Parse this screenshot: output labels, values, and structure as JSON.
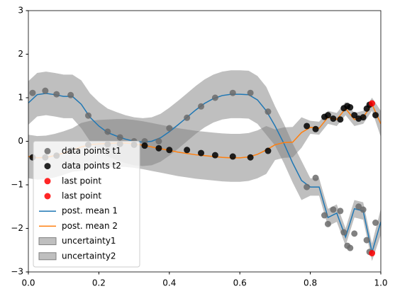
{
  "chart_data": {
    "type": "line",
    "xlim": [
      0,
      1
    ],
    "ylim": [
      -3,
      3
    ],
    "xticks": [
      {
        "value": 0,
        "label": "0.0"
      },
      0.2,
      0.4,
      0.6,
      0.8,
      {
        "value": 1,
        "label": "1.0"
      }
    ],
    "yticks": [
      {
        "value": -3,
        "label": "−3"
      },
      {
        "value": -2,
        "label": "−2"
      },
      {
        "value": -1,
        "label": "−1"
      },
      0,
      1,
      2,
      3
    ],
    "legend": "lower left",
    "x": [
      0,
      0.025,
      0.05,
      0.075,
      0.1,
      0.125,
      0.15,
      0.175,
      0.2,
      0.225,
      0.25,
      0.275,
      0.3,
      0.325,
      0.35,
      0.375,
      0.4,
      0.425,
      0.45,
      0.475,
      0.5,
      0.525,
      0.55,
      0.575,
      0.6,
      0.625,
      0.65,
      0.675,
      0.7,
      0.725,
      0.75,
      0.775,
      0.8,
      0.825,
      0.85,
      0.875,
      0.9,
      0.925,
      0.95,
      0.975,
      1
    ],
    "points": [
      {
        "name": "data points t1",
        "color": "#6b6b6b",
        "x": [
          0.012,
          0.048,
          0.08,
          0.12,
          0.17,
          0.225,
          0.26,
          0.3,
          0.33,
          0.37,
          0.4,
          0.45,
          0.49,
          0.53,
          0.58,
          0.63,
          0.68,
          0.79,
          0.815,
          0.84,
          0.85,
          0.865,
          0.885,
          0.895,
          0.905,
          0.913,
          0.925,
          0.937,
          0.95,
          0.96,
          0.968,
          0.985
        ],
        "y": [
          1.11,
          1.16,
          1.08,
          1.06,
          0.59,
          0.22,
          0.09,
          0,
          0,
          0,
          0.3,
          0.54,
          0.8,
          1,
          1.11,
          1.11,
          0.68,
          -1.05,
          -0.84,
          -1.7,
          -1.9,
          -1.57,
          -1.6,
          -2.09,
          -2.4,
          -2.45,
          -2.12,
          -1.5,
          -1.57,
          -2.27,
          -2.54,
          -1.87
        ]
      },
      {
        "name": "data points t2",
        "color": "#000000",
        "x": [
          0.012,
          0.048,
          0.08,
          0.12,
          0.17,
          0.225,
          0.26,
          0.3,
          0.33,
          0.37,
          0.4,
          0.45,
          0.49,
          0.53,
          0.58,
          0.63,
          0.68,
          0.79,
          0.815,
          0.84,
          0.85,
          0.865,
          0.885,
          0.895,
          0.905,
          0.913,
          0.925,
          0.937,
          0.95,
          0.96,
          0.968,
          0.985
        ],
        "y": [
          -0.37,
          -0.37,
          -0.33,
          -0.22,
          -0.08,
          -0.07,
          -0.06,
          -0.08,
          -0.1,
          -0.16,
          -0.2,
          -0.2,
          -0.27,
          -0.32,
          -0.35,
          -0.37,
          -0.22,
          0.35,
          0.28,
          0.56,
          0.6,
          0.52,
          0.5,
          0.76,
          0.81,
          0.78,
          0.6,
          0.52,
          0.55,
          0.75,
          0.84,
          0.6
        ]
      },
      {
        "name": "last point",
        "color": "#ff0000",
        "x": [
          0.975
        ],
        "y": [
          -2.57
        ]
      },
      {
        "name": "last point",
        "color": "#ff0000",
        "x": [
          0.975
        ],
        "y": [
          0.87
        ]
      }
    ],
    "series": [
      {
        "name": "post. mean 1",
        "color": "#1f77b4",
        "values": [
          0.88,
          1.07,
          1.1,
          1.07,
          1.03,
          1.03,
          0.85,
          0.55,
          0.35,
          0.2,
          0.12,
          0.05,
          0,
          -0.02,
          0,
          0.08,
          0.22,
          0.38,
          0.55,
          0.72,
          0.87,
          0.98,
          1.05,
          1.08,
          1.08,
          1.07,
          0.95,
          0.7,
          0.35,
          -0.05,
          -0.5,
          -0.9,
          -1.05,
          -1.05,
          -1.75,
          -1.65,
          -2.2,
          -1.55,
          -1.6,
          -2.55,
          -1.85
        ]
      },
      {
        "name": "post. mean 2",
        "color": "#ff7f0e",
        "values": [
          -0.35,
          -0.38,
          -0.37,
          -0.33,
          -0.27,
          -0.2,
          -0.13,
          -0.08,
          -0.06,
          -0.05,
          -0.04,
          -0.04,
          -0.06,
          -0.09,
          -0.13,
          -0.17,
          -0.21,
          -0.25,
          -0.28,
          -0.31,
          -0.33,
          -0.35,
          -0.37,
          -0.38,
          -0.38,
          -0.36,
          -0.3,
          -0.2,
          -0.08,
          -0.03,
          -0.02,
          0.2,
          0.32,
          0.3,
          0.55,
          0.5,
          0.75,
          0.5,
          0.55,
          0.85,
          0.4
        ]
      }
    ],
    "bands": [
      {
        "name": "uncertainty1",
        "color": "#808080",
        "upper": [
          1.38,
          1.57,
          1.6,
          1.57,
          1.53,
          1.53,
          1.4,
          1.1,
          0.9,
          0.75,
          0.67,
          0.6,
          0.55,
          0.53,
          0.55,
          0.63,
          0.77,
          0.93,
          1.1,
          1.27,
          1.42,
          1.53,
          1.6,
          1.63,
          1.63,
          1.62,
          1.5,
          1.25,
          0.8,
          0.4,
          -0.05,
          -0.45,
          -0.85,
          -0.85,
          -1.55,
          -1.45,
          -2,
          -1.35,
          -1.4,
          -2.35,
          -1.55
        ],
        "lower": [
          0.38,
          0.57,
          0.6,
          0.57,
          0.53,
          0.53,
          0.3,
          0,
          -0.2,
          -0.35,
          -0.43,
          -0.5,
          -0.55,
          -0.57,
          -0.55,
          -0.47,
          -0.33,
          -0.17,
          0,
          0.17,
          0.32,
          0.43,
          0.5,
          0.53,
          0.53,
          0.52,
          0.4,
          0.15,
          -0.1,
          -0.5,
          -0.95,
          -1.35,
          -1.25,
          -1.25,
          -1.95,
          -1.85,
          -2.4,
          -1.75,
          -1.8,
          -2.75,
          -2.15
        ]
      },
      {
        "name": "uncertainty2",
        "color": "#808080",
        "upper": [
          0.15,
          0.12,
          0.13,
          0.17,
          0.23,
          0.3,
          0.42,
          0.47,
          0.49,
          0.5,
          0.51,
          0.51,
          0.49,
          0.46,
          0.42,
          0.38,
          0.34,
          0.3,
          0.27,
          0.24,
          0.22,
          0.2,
          0.18,
          0.17,
          0.17,
          0.19,
          0.25,
          0.35,
          0.27,
          0.32,
          0.33,
          0.55,
          0.47,
          0.45,
          0.7,
          0.65,
          0.9,
          0.65,
          0.7,
          1,
          0.7
        ],
        "lower": [
          -0.85,
          -0.88,
          -0.87,
          -0.83,
          -0.77,
          -0.7,
          -0.68,
          -0.63,
          -0.61,
          -0.6,
          -0.59,
          -0.59,
          -0.61,
          -0.64,
          -0.68,
          -0.72,
          -0.76,
          -0.8,
          -0.83,
          -0.86,
          -0.88,
          -0.9,
          -0.92,
          -0.93,
          -0.93,
          -0.91,
          -0.85,
          -0.75,
          -0.43,
          -0.38,
          -0.37,
          -0.15,
          0.17,
          0.15,
          0.4,
          0.35,
          0.6,
          0.35,
          0.4,
          0.7,
          0.1
        ]
      }
    ]
  }
}
